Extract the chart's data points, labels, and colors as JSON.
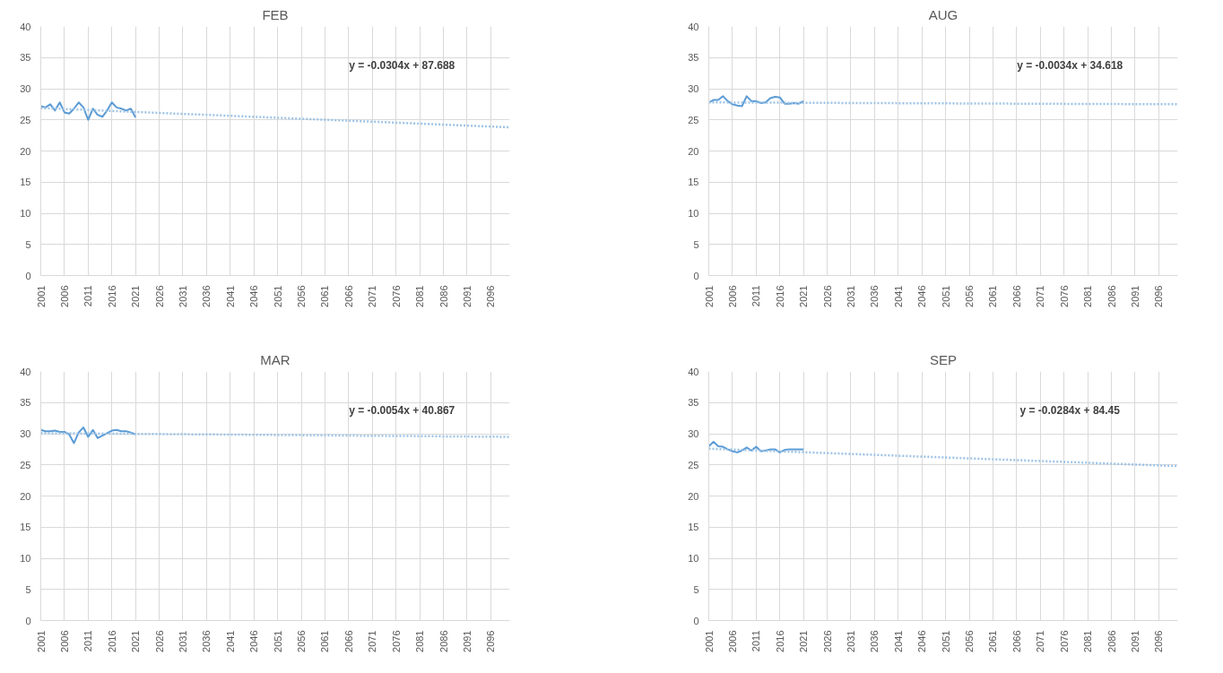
{
  "chart_data": [
    {
      "type": "line",
      "title": "FEB",
      "annotations": [
        "y = -0.0304x + 87.688"
      ],
      "xlim": [
        2001,
        2100
      ],
      "ylim": [
        0,
        40
      ],
      "yticks": [
        0,
        5,
        10,
        15,
        20,
        25,
        30,
        35,
        40
      ],
      "xticks": [
        2001,
        2006,
        2011,
        2016,
        2021,
        2026,
        2031,
        2036,
        2041,
        2046,
        2051,
        2056,
        2061,
        2066,
        2071,
        2076,
        2081,
        2086,
        2091,
        2096
      ],
      "grid": true,
      "series": [
        {
          "color": "#5b9bd5",
          "line_style": "solid",
          "x": [
            2001,
            2002,
            2003,
            2004,
            2005,
            2006,
            2007,
            2008,
            2009,
            2010,
            2011,
            2012,
            2013,
            2014,
            2015,
            2016,
            2017,
            2018,
            2019,
            2020,
            2021
          ],
          "values": [
            27.2,
            27,
            27.5,
            26.5,
            27.8,
            26.2,
            26,
            26.8,
            27.8,
            27,
            25,
            26.8,
            25.8,
            25.5,
            26.5,
            27.8,
            27,
            26.8,
            26.5,
            26.8,
            25.4
          ]
        },
        {
          "color": "#9dc3e6",
          "line_style": "dotted",
          "x": [
            2001,
            2100
          ],
          "values": [
            26.9,
            23.8
          ]
        }
      ]
    },
    {
      "type": "line",
      "title": "AUG",
      "annotations": [
        "y = -0.0034x + 34.618"
      ],
      "xlim": [
        2001,
        2100
      ],
      "ylim": [
        0,
        40
      ],
      "yticks": [
        0,
        5,
        10,
        15,
        20,
        25,
        30,
        35,
        40
      ],
      "xticks": [
        2001,
        2006,
        2011,
        2016,
        2021,
        2026,
        2031,
        2036,
        2041,
        2046,
        2051,
        2056,
        2061,
        2066,
        2071,
        2076,
        2081,
        2086,
        2091,
        2096
      ],
      "grid": true,
      "series": [
        {
          "color": "#5b9bd5",
          "line_style": "solid",
          "x": [
            2001,
            2002,
            2003,
            2004,
            2005,
            2006,
            2007,
            2008,
            2009,
            2010,
            2011,
            2012,
            2013,
            2014,
            2015,
            2016,
            2017,
            2018,
            2019,
            2020,
            2021
          ],
          "values": [
            27.8,
            28.2,
            28.2,
            28.8,
            28,
            27.5,
            27.3,
            27.2,
            28.8,
            28,
            28,
            27.7,
            27.8,
            28.5,
            28.7,
            28.6,
            27.6,
            27.6,
            27.7,
            27.6,
            28
          ]
        },
        {
          "color": "#9dc3e6",
          "line_style": "dotted",
          "x": [
            2001,
            2100
          ],
          "values": [
            27.8,
            27.5
          ]
        }
      ]
    },
    {
      "type": "line",
      "title": "MAR",
      "annotations": [
        "y = -0.0054x + 40.867"
      ],
      "xlim": [
        2001,
        2100
      ],
      "ylim": [
        0,
        40
      ],
      "yticks": [
        0,
        5,
        10,
        15,
        20,
        25,
        30,
        35,
        40
      ],
      "xticks": [
        2001,
        2006,
        2011,
        2016,
        2021,
        2026,
        2031,
        2036,
        2041,
        2046,
        2051,
        2056,
        2061,
        2066,
        2071,
        2076,
        2081,
        2086,
        2091,
        2096
      ],
      "grid": true,
      "series": [
        {
          "color": "#5b9bd5",
          "line_style": "solid",
          "x": [
            2001,
            2002,
            2003,
            2004,
            2005,
            2006,
            2007,
            2008,
            2009,
            2010,
            2011,
            2012,
            2013,
            2014,
            2015,
            2016,
            2017,
            2018,
            2019,
            2020,
            2021
          ],
          "values": [
            30.6,
            30.4,
            30.4,
            30.5,
            30.3,
            30.3,
            29.9,
            28.5,
            30.2,
            31,
            29.5,
            30.6,
            29.3,
            29.7,
            30.1,
            30.5,
            30.6,
            30.4,
            30.4,
            30.2,
            29.9
          ]
        },
        {
          "color": "#9dc3e6",
          "line_style": "dotted",
          "x": [
            2001,
            2100
          ],
          "values": [
            30.1,
            29.5
          ]
        }
      ]
    },
    {
      "type": "line",
      "title": "SEP",
      "annotations": [
        "y = -0.0284x + 84.45"
      ],
      "xlim": [
        2001,
        2100
      ],
      "ylim": [
        0,
        40
      ],
      "yticks": [
        0,
        5,
        10,
        15,
        20,
        25,
        30,
        35,
        40
      ],
      "xticks": [
        2001,
        2006,
        2011,
        2016,
        2021,
        2026,
        2031,
        2036,
        2041,
        2046,
        2051,
        2056,
        2061,
        2066,
        2071,
        2076,
        2081,
        2086,
        2091,
        2096
      ],
      "grid": true,
      "series": [
        {
          "color": "#5b9bd5",
          "line_style": "solid",
          "x": [
            2001,
            2002,
            2003,
            2004,
            2005,
            2006,
            2007,
            2008,
            2009,
            2010,
            2011,
            2012,
            2013,
            2014,
            2015,
            2016,
            2017,
            2018,
            2019,
            2020,
            2021
          ],
          "values": [
            28,
            28.7,
            28,
            27.9,
            27.5,
            27.2,
            27,
            27.3,
            27.8,
            27.3,
            27.9,
            27.2,
            27.3,
            27.5,
            27.5,
            27,
            27.4,
            27.5,
            27.5,
            27.5,
            27.5
          ]
        },
        {
          "color": "#9dc3e6",
          "line_style": "dotted",
          "x": [
            2001,
            2100
          ],
          "values": [
            27.6,
            24.8
          ]
        }
      ]
    }
  ]
}
